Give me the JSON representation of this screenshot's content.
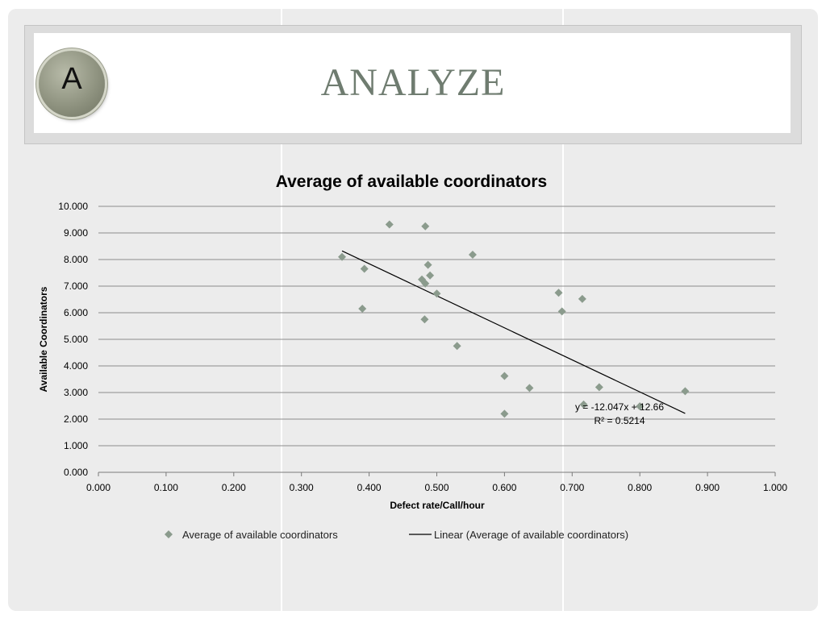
{
  "slide": {
    "badge_letter": "A",
    "title": "ANALYZE"
  },
  "colors": {
    "slide_bg": "#ececec",
    "title_text": "#6f7c70",
    "marker": "#8b9b8d",
    "trendline": "#000000",
    "gridline": "#8c8c8c"
  },
  "chart_data": {
    "type": "scatter",
    "title": "Average of available coordinators",
    "xlabel": "Defect rate/Call/hour",
    "ylabel": "Available Coordinators",
    "xlim": [
      0,
      1
    ],
    "ylim": [
      0,
      10
    ],
    "x_ticks": [
      "0.000",
      "0.100",
      "0.200",
      "0.300",
      "0.400",
      "0.500",
      "0.600",
      "0.700",
      "0.800",
      "0.900",
      "1.000"
    ],
    "y_ticks": [
      "0.000",
      "1.000",
      "2.000",
      "3.000",
      "4.000",
      "5.000",
      "6.000",
      "7.000",
      "8.000",
      "9.000",
      "10.000"
    ],
    "grid": "horizontal",
    "legend_position": "bottom",
    "series": [
      {
        "name": "Average of available coordinators",
        "marker": "diamond",
        "points": [
          [
            0.36,
            8.1
          ],
          [
            0.39,
            6.15
          ],
          [
            0.393,
            7.65
          ],
          [
            0.43,
            9.32
          ],
          [
            0.478,
            7.25
          ],
          [
            0.483,
            7.1
          ],
          [
            0.482,
            5.75
          ],
          [
            0.483,
            9.25
          ],
          [
            0.487,
            7.8
          ],
          [
            0.49,
            7.4
          ],
          [
            0.5,
            6.72
          ],
          [
            0.53,
            4.75
          ],
          [
            0.553,
            8.18
          ],
          [
            0.6,
            3.62
          ],
          [
            0.6,
            2.2
          ],
          [
            0.637,
            3.17
          ],
          [
            0.68,
            6.75
          ],
          [
            0.685,
            6.05
          ],
          [
            0.715,
            6.52
          ],
          [
            0.717,
            2.55
          ],
          [
            0.74,
            3.2
          ],
          [
            0.8,
            2.48
          ],
          [
            0.867,
            3.05
          ]
        ]
      }
    ],
    "trendline": {
      "name": "Linear (Average of available coordinators)",
      "type": "linear",
      "slope": -12.047,
      "intercept": 12.66,
      "x_range": [
        0.36,
        0.867
      ],
      "equation_label": "y = -12.047x + 12.66",
      "r2_label": "R² = 0.5214"
    }
  }
}
